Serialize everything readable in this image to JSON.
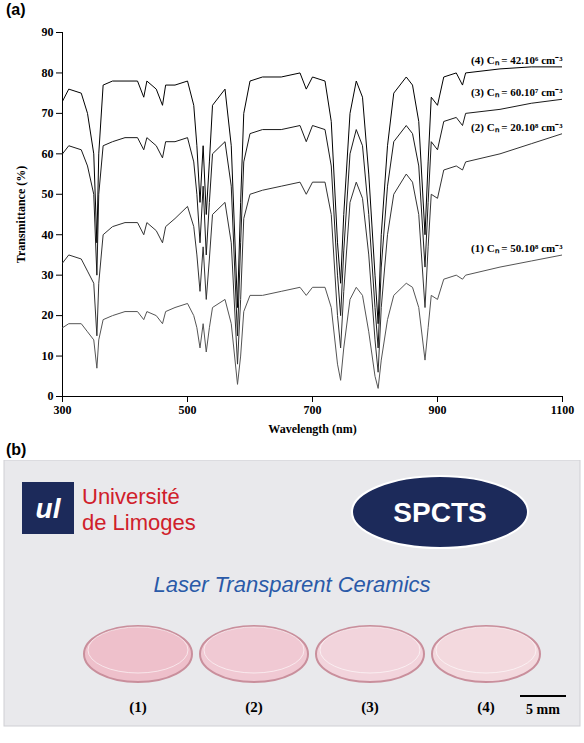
{
  "chart_data": {
    "type": "line",
    "panel": "(a)",
    "x_label": "Wavelength (nm)",
    "y_label": "Transmittance (%)",
    "xlim": [
      300,
      1100
    ],
    "xticks": [
      300,
      500,
      700,
      900,
      1100
    ],
    "ylim": [
      0,
      90
    ],
    "yticks": [
      0,
      10,
      20,
      30,
      40,
      50,
      60,
      70,
      80,
      90
    ],
    "grid": false,
    "x": [
      300,
      310,
      330,
      340,
      350,
      355,
      358,
      365,
      380,
      400,
      420,
      430,
      435,
      450,
      460,
      465,
      480,
      500,
      510,
      515,
      520,
      525,
      530,
      535,
      540,
      560,
      570,
      580,
      585,
      590,
      600,
      620,
      650,
      680,
      690,
      700,
      720,
      730,
      740,
      745,
      750,
      760,
      770,
      780,
      790,
      800,
      805,
      810,
      820,
      830,
      850,
      860,
      870,
      880,
      885,
      890,
      900,
      910,
      930,
      940,
      945,
      1000,
      1050,
      1100
    ],
    "series": [
      {
        "name": "(4) Cₙ = 42.10⁶ cm⁻³",
        "color": "#000000",
        "values": [
          73,
          76,
          75,
          70,
          60,
          38,
          60,
          77,
          78,
          78,
          78,
          74,
          78,
          76,
          72,
          77,
          77,
          78,
          72,
          62,
          48,
          62,
          45,
          58,
          72,
          76,
          62,
          22,
          48,
          70,
          78,
          79,
          79,
          80,
          76,
          79,
          78,
          68,
          38,
          28,
          45,
          70,
          78,
          74,
          55,
          30,
          18,
          40,
          62,
          75,
          79,
          77,
          68,
          40,
          58,
          74,
          72,
          79,
          80,
          77,
          80,
          81,
          81.5,
          81.5
        ]
      },
      {
        "name": "(3) Cₙ = 60.10⁷ cm⁻³",
        "color": "#1a1a1a",
        "values": [
          60,
          62,
          61,
          57,
          50,
          30,
          50,
          62,
          63,
          64,
          64,
          61,
          64,
          62,
          59,
          63,
          63,
          64,
          58,
          50,
          38,
          52,
          35,
          48,
          60,
          63,
          52,
          15,
          38,
          58,
          65,
          66,
          66,
          67,
          63,
          67,
          66,
          57,
          30,
          20,
          36,
          60,
          66,
          62,
          45,
          22,
          12,
          32,
          52,
          63,
          67,
          65,
          57,
          32,
          48,
          63,
          61,
          68,
          69,
          67,
          70,
          71,
          72.5,
          73.5
        ]
      },
      {
        "name": "(2) Cₙ = 20.10⁸ cm⁻³",
        "color": "#333333",
        "values": [
          33,
          35,
          34,
          31,
          28,
          15,
          28,
          40,
          42,
          43,
          43,
          40,
          43,
          41,
          38,
          42,
          44,
          47,
          42,
          35,
          26,
          37,
          24,
          34,
          45,
          48,
          38,
          8,
          24,
          44,
          50,
          51,
          52,
          53,
          50,
          53,
          53,
          45,
          20,
          12,
          26,
          48,
          53,
          49,
          35,
          14,
          6,
          22,
          40,
          50,
          55,
          53,
          45,
          22,
          37,
          50,
          49,
          56,
          57,
          56,
          58,
          60,
          62.5,
          65
        ]
      },
      {
        "name": "(1) Cₙ = 50.10⁸ cm⁻³",
        "color": "#555555",
        "values": [
          17,
          18,
          18,
          16,
          14,
          7,
          14,
          19,
          20,
          21,
          21,
          19,
          21,
          20,
          18,
          21,
          22,
          23,
          20,
          17,
          12,
          18,
          11,
          17,
          22,
          24,
          18,
          3,
          10,
          21,
          25,
          25,
          26,
          27,
          25,
          27,
          27,
          22,
          8,
          4,
          12,
          24,
          27,
          25,
          16,
          5,
          2,
          9,
          19,
          25,
          28,
          27,
          22,
          9,
          17,
          25,
          24,
          29,
          30,
          29,
          30,
          32,
          33.5,
          35
        ]
      }
    ]
  },
  "photo": {
    "panel": "(b)",
    "logo_mark": "ul",
    "logo_text": [
      "Université",
      "de Limoges"
    ],
    "badge": "SPCTS",
    "banner": "Laser Transparent Ceramics",
    "samples": [
      "(1)",
      "(2)",
      "(3)",
      "(4)"
    ],
    "scale_bar": "5 mm"
  }
}
